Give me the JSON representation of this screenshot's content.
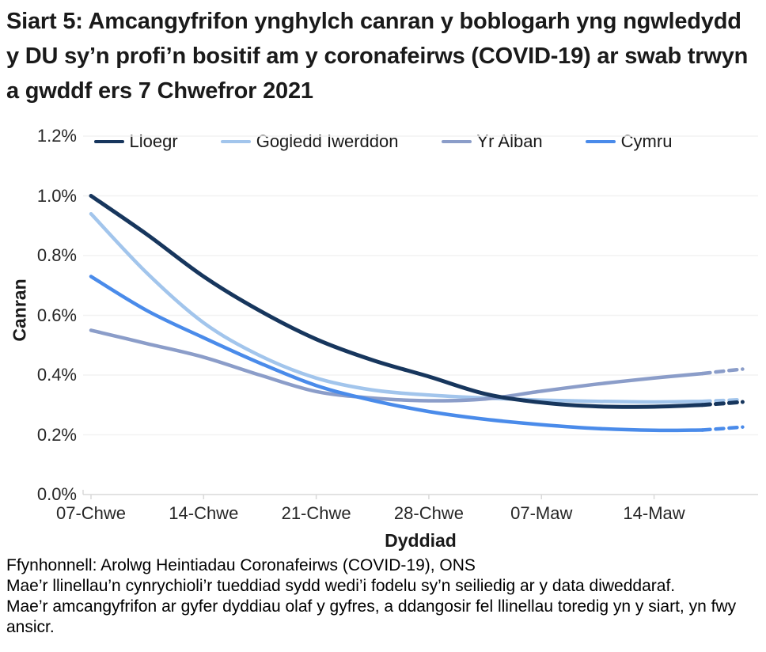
{
  "title": "Siart 5: Amcangyfrifon ynghylch canran y boblogarh yng ngwledydd y DU sy’n profi’n bositif am y coronafeirws (COVID-19) ar swab trwyn a gwddf ers 7 Chwefror 2021",
  "footer": {
    "source": "Ffynhonnell: Arolwg Heintiadau Coronafeirws (COVID-19), ONS",
    "note1": "Mae’r llinellau’n cynrychioli’r tueddiad sydd wedi’i fodelu sy’n seiliedig ar y data diweddaraf.",
    "note2": "Mae’r amcangyfrifon ar gyfer dyddiau olaf y gyfres, a ddangosir fel llinellau toredig yn y siart, yn fwy ansicr."
  },
  "chart_data": {
    "type": "line",
    "xlabel": "Dyddiad",
    "ylabel": "Canran",
    "x_unit": "days since 07 Feb 2021",
    "ylim": [
      0.0,
      1.2
    ],
    "grid": "horizontal only",
    "legend_position": "top",
    "dashed_meaning": "estimates for the last days of the series (more uncertain)",
    "xticks": [
      {
        "day": 0,
        "label": "07-Chwe"
      },
      {
        "day": 7,
        "label": "14-Chwe"
      },
      {
        "day": 14,
        "label": "21-Chwe"
      },
      {
        "day": 21,
        "label": "28-Chwe"
      },
      {
        "day": 28,
        "label": "07-Maw"
      },
      {
        "day": 35,
        "label": "14-Maw"
      }
    ],
    "yticks": [
      {
        "value": 0.0,
        "label": "0.0%"
      },
      {
        "value": 0.2,
        "label": "0.2%"
      },
      {
        "value": 0.4,
        "label": "0.4%"
      },
      {
        "value": 0.6,
        "label": "0.6%"
      },
      {
        "value": 0.8,
        "label": "0.8%"
      },
      {
        "value": 1.0,
        "label": "1.0%"
      },
      {
        "value": 1.2,
        "label": "1.2%"
      }
    ],
    "series": [
      {
        "name": "Gogledd Iwerddon",
        "color": "#a2c5ec",
        "solid": [
          [
            0,
            0.94
          ],
          [
            3.5,
            0.74
          ],
          [
            7,
            0.575
          ],
          [
            10.5,
            0.465
          ],
          [
            14,
            0.39
          ],
          [
            17.5,
            0.35
          ],
          [
            21,
            0.333
          ],
          [
            24.5,
            0.323
          ],
          [
            28,
            0.316
          ],
          [
            31.5,
            0.312
          ],
          [
            35,
            0.31
          ],
          [
            38,
            0.312
          ]
        ],
        "dashed": [
          [
            38,
            0.312
          ],
          [
            39.3,
            0.315
          ],
          [
            40.5,
            0.318
          ]
        ]
      },
      {
        "name": "Yr Alban",
        "color": "#8b9dc9",
        "solid": [
          [
            0,
            0.55
          ],
          [
            3.5,
            0.505
          ],
          [
            7,
            0.46
          ],
          [
            10.5,
            0.4
          ],
          [
            14,
            0.345
          ],
          [
            17.5,
            0.323
          ],
          [
            21,
            0.314
          ],
          [
            24.5,
            0.32
          ],
          [
            28,
            0.346
          ],
          [
            31.5,
            0.37
          ],
          [
            35,
            0.39
          ],
          [
            38,
            0.405
          ]
        ],
        "dashed": [
          [
            38,
            0.405
          ],
          [
            39.3,
            0.413
          ],
          [
            40.5,
            0.42
          ]
        ]
      },
      {
        "name": "Cymru",
        "color": "#4a8bea",
        "solid": [
          [
            0,
            0.73
          ],
          [
            3.5,
            0.615
          ],
          [
            7,
            0.525
          ],
          [
            10.5,
            0.44
          ],
          [
            14,
            0.365
          ],
          [
            17.5,
            0.315
          ],
          [
            21,
            0.278
          ],
          [
            24.5,
            0.252
          ],
          [
            28,
            0.234
          ],
          [
            31.5,
            0.221
          ],
          [
            35,
            0.215
          ],
          [
            38,
            0.216
          ]
        ],
        "dashed": [
          [
            38,
            0.216
          ],
          [
            39.3,
            0.221
          ],
          [
            40.5,
            0.226
          ]
        ]
      },
      {
        "name": "Lloegr",
        "color": "#17365d",
        "solid": [
          [
            0,
            1.0
          ],
          [
            3.5,
            0.87
          ],
          [
            7,
            0.73
          ],
          [
            10.5,
            0.615
          ],
          [
            14,
            0.52
          ],
          [
            17.5,
            0.45
          ],
          [
            21,
            0.395
          ],
          [
            24.5,
            0.337
          ],
          [
            28,
            0.308
          ],
          [
            31.5,
            0.295
          ],
          [
            35,
            0.294
          ],
          [
            38,
            0.3
          ]
        ],
        "dashed": [
          [
            38,
            0.3
          ],
          [
            39.3,
            0.305
          ],
          [
            40.5,
            0.31
          ]
        ]
      }
    ],
    "legend_order": [
      "Lloegr",
      "Gogledd Iwerddon",
      "Yr Alban",
      "Cymru"
    ]
  }
}
